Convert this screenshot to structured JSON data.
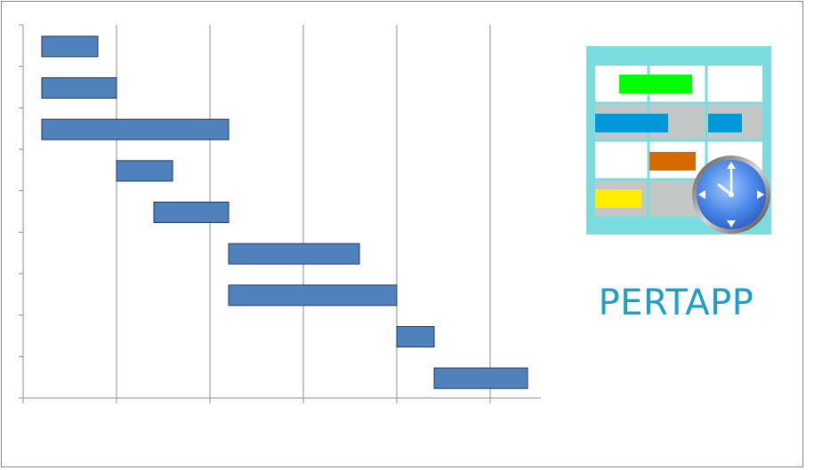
{
  "chart_data": {
    "type": "gantt",
    "title": "",
    "xlabel": "",
    "ylabel": "",
    "grid": "vertical",
    "xlim": [
      0,
      5.5
    ],
    "tasks": [
      {
        "start": 0.2,
        "end": 0.8
      },
      {
        "start": 0.2,
        "end": 1.0
      },
      {
        "start": 0.2,
        "end": 2.2
      },
      {
        "start": 1.0,
        "end": 1.6
      },
      {
        "start": 1.4,
        "end": 2.2
      },
      {
        "start": 2.2,
        "end": 3.6
      },
      {
        "start": 2.2,
        "end": 4.0
      },
      {
        "start": 4.0,
        "end": 4.4
      },
      {
        "start": 4.4,
        "end": 5.4
      }
    ],
    "bar_color": "#4f81bd",
    "bar_border": "#1f3864"
  },
  "logo": {
    "name": "pertapp-logo-icon",
    "frame_color": "#7adcdf",
    "clock_icon": "clock-icon",
    "bar_colors": [
      "#00ff00",
      "#0098d8",
      "#0098d8",
      "#d66a00",
      "#ffee00"
    ]
  },
  "brand": {
    "text": "PERTAPP",
    "color": "#1aa0c8"
  }
}
